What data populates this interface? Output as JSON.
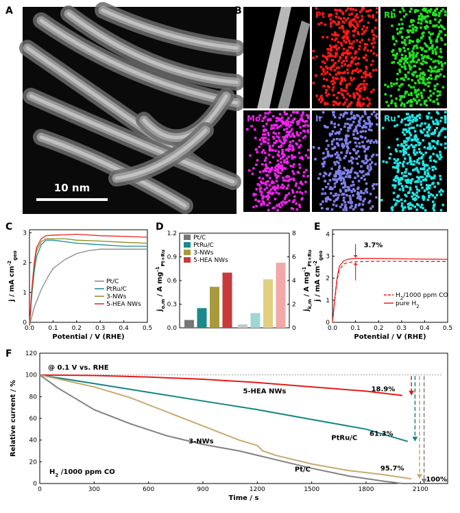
{
  "panel_labels": {
    "a": "A",
    "b": "B",
    "c": "C",
    "d": "D",
    "e": "E",
    "f": "F"
  },
  "micrograph": {
    "scale_bar_label": "10 nm"
  },
  "element_maps": [
    {
      "label": "",
      "color": "#dddddd"
    },
    {
      "label": "Pt",
      "color": "#ff1a1a"
    },
    {
      "label": "Rh",
      "color": "#22e022"
    },
    {
      "label": "Mo",
      "color": "#ee22ee"
    },
    {
      "label": "Ir",
      "color": "#8080ea"
    },
    {
      "label": "Ru",
      "color": "#20e6e6"
    }
  ],
  "chart_data": [
    {
      "id": "C",
      "type": "line",
      "ylabel_main": "j / mA cm",
      "ylabel_sup": "-2",
      "ylabel_sub": "geo",
      "xlabel": "Potential / V (RHE)",
      "xlim": [
        0,
        0.5
      ],
      "ylim": [
        0,
        3.1
      ],
      "xticks": [
        0.0,
        0.1,
        0.2,
        0.3,
        0.4,
        0.5
      ],
      "xtick_labels": [
        "0.0",
        "0.1",
        "0.2",
        "0.3",
        "0.4",
        "0.5"
      ],
      "yticks": [
        0,
        1,
        2,
        3
      ],
      "ytick_labels": [
        "0",
        "1",
        "2",
        "3"
      ],
      "legend_position": "bottom-right",
      "series": [
        {
          "name": "Pt/C",
          "color": "#888888",
          "x": [
            0,
            0.02,
            0.05,
            0.08,
            0.1,
            0.15,
            0.2,
            0.25,
            0.3,
            0.4,
            0.5
          ],
          "y": [
            -0.1,
            0.5,
            1.1,
            1.55,
            1.8,
            2.1,
            2.3,
            2.4,
            2.45,
            2.45,
            2.45
          ]
        },
        {
          "name": "PtRu/C",
          "color": "#138c8c",
          "x": [
            0,
            0.01,
            0.02,
            0.03,
            0.05,
            0.07,
            0.1,
            0.15,
            0.2,
            0.3,
            0.4,
            0.5
          ],
          "y": [
            -0.1,
            0.9,
            1.7,
            2.2,
            2.6,
            2.75,
            2.75,
            2.7,
            2.65,
            2.6,
            2.55,
            2.55
          ]
        },
        {
          "name": "3-NWs",
          "color": "#8a8a1a",
          "x": [
            0,
            0.01,
            0.02,
            0.03,
            0.05,
            0.07,
            0.1,
            0.15,
            0.2,
            0.3,
            0.4,
            0.5
          ],
          "y": [
            -0.1,
            1.0,
            1.9,
            2.4,
            2.7,
            2.8,
            2.8,
            2.8,
            2.75,
            2.72,
            2.68,
            2.65
          ]
        },
        {
          "name": "5-HEA NWs",
          "color": "#ee1c1c",
          "x": [
            0,
            0.01,
            0.02,
            0.03,
            0.05,
            0.07,
            0.1,
            0.15,
            0.2,
            0.3,
            0.4,
            0.5
          ],
          "y": [
            -0.1,
            1.1,
            2.0,
            2.5,
            2.8,
            2.9,
            2.92,
            2.93,
            2.95,
            2.9,
            2.88,
            2.85
          ]
        }
      ]
    },
    {
      "id": "D",
      "type": "bar",
      "ylabel_left_main": "j",
      "ylabel_left_sub": "o,m",
      "ylabel_left_rest": " / A mg",
      "ylabel_left_sup": "-1",
      "ylabel_left_sub2": "Pt+Ru",
      "ylabel_right_main": "j",
      "ylabel_right_sub": "k,m",
      "ylabel_right_rest": " / A mg",
      "ylabel_right_sup": "-1",
      "ylabel_right_sub2": "Pt+Ru",
      "ylim_left": [
        0,
        1.2
      ],
      "ylim_right": [
        0,
        8
      ],
      "yticks_left": [
        0,
        0.3,
        0.6,
        0.9,
        1.2
      ],
      "ytick_labels_left": [
        "0.0",
        "0.3",
        "0.6",
        "0.9",
        "1.2"
      ],
      "yticks_right": [
        0,
        2,
        4,
        6,
        8
      ],
      "ytick_labels_right": [
        "0",
        "2",
        "4",
        "6",
        "8"
      ],
      "legend_position": "top-left",
      "categories": [
        "Pt/C",
        "PtRu/C",
        "3-NWs",
        "5-HEA NWs"
      ],
      "colors": [
        "#777777",
        "#1a8a8a",
        "#a89a3a",
        "#c83a3a"
      ],
      "light_colors": [
        "#c8c8c8",
        "#9fd6d6",
        "#e0d080",
        "#f2a8a8"
      ],
      "series": [
        {
          "values": [
            0.1,
            0.25,
            0.52,
            0.7
          ]
        },
        {
          "values": [
            0.3,
            1.25,
            4.1,
            5.5
          ]
        }
      ]
    },
    {
      "id": "E",
      "type": "line",
      "ylabel_main": "j / mA cm",
      "ylabel_sup": "-2",
      "ylabel_sub": "geo",
      "xlabel": "Potential / V (RHE)",
      "xlim": [
        0,
        0.5
      ],
      "ylim": [
        0,
        4.2
      ],
      "xticks": [
        0.0,
        0.1,
        0.2,
        0.3,
        0.4,
        0.5
      ],
      "xtick_labels": [
        "0.0",
        "0.1",
        "0.2",
        "0.3",
        "0.4",
        "0.5"
      ],
      "yticks": [
        0,
        1,
        2,
        3,
        4
      ],
      "ytick_labels": [
        "0",
        "1",
        "2",
        "3",
        "4"
      ],
      "annotation": "3.7%",
      "annotation_x": 0.1,
      "legend_position": "bottom-right",
      "series": [
        {
          "name": "H",
          "name_sub": "2",
          "name_rest": "/1000 ppm CO",
          "color": "#ee1c1c",
          "dashed": true,
          "x": [
            0,
            0.01,
            0.02,
            0.03,
            0.05,
            0.07,
            0.1,
            0.15,
            0.2,
            0.3,
            0.4,
            0.5
          ],
          "y": [
            0,
            1.0,
            1.9,
            2.4,
            2.65,
            2.72,
            2.75,
            2.76,
            2.77,
            2.77,
            2.76,
            2.76
          ]
        },
        {
          "name": "pure H",
          "name_sub": "2",
          "name_rest": "",
          "color": "#ee1c1c",
          "dashed": false,
          "x": [
            0,
            0.01,
            0.02,
            0.03,
            0.05,
            0.07,
            0.1,
            0.15,
            0.2,
            0.3,
            0.4,
            0.5
          ],
          "y": [
            0,
            1.1,
            2.0,
            2.55,
            2.8,
            2.87,
            2.9,
            2.9,
            2.9,
            2.88,
            2.87,
            2.86
          ]
        }
      ]
    },
    {
      "id": "F",
      "type": "line",
      "ylabel": "Relative current / %",
      "xlabel": "Time / s",
      "xlim": [
        0,
        2250
      ],
      "ylim": [
        0,
        120
      ],
      "xticks": [
        0,
        300,
        600,
        900,
        1200,
        1500,
        1800,
        2100
      ],
      "xtick_labels": [
        "0",
        "300",
        "600",
        "900",
        "1200",
        "1500",
        "1800",
        "2100"
      ],
      "yticks": [
        0,
        20,
        40,
        60,
        80,
        100,
        120
      ],
      "ytick_labels": [
        "0",
        "20",
        "40",
        "60",
        "80",
        "100",
        "120"
      ],
      "reference_line": 100,
      "condition": "@ 0.1 V vs. RHE",
      "gas_label_main": "H",
      "gas_label_sub": "2",
      "gas_label_rest": " /1000 ppm CO",
      "series": [
        {
          "name": "5-HEA NWs",
          "color": "#e41a1a",
          "x": [
            0,
            300,
            600,
            900,
            1200,
            1500,
            1800,
            2000
          ],
          "y": [
            100,
            99.5,
            98,
            96,
            93,
            89,
            85,
            81.1
          ],
          "end_label": "18.9%",
          "end_x": 2050
        },
        {
          "name": "PtRu/C",
          "color": "#138484",
          "x": [
            0,
            300,
            600,
            900,
            1200,
            1500,
            1800,
            2030
          ],
          "y": [
            100,
            92,
            84,
            76,
            68,
            59,
            50,
            38.7
          ],
          "end_label": "61.3%",
          "end_x": 2070
        },
        {
          "name": "3-NWs",
          "color": "#c8a870",
          "x": [
            0,
            300,
            500,
            700,
            900,
            1100,
            1200,
            1230,
            1300,
            1500,
            1700,
            1900,
            2050
          ],
          "y": [
            100,
            89,
            79,
            66,
            53,
            40,
            35,
            30,
            26,
            18,
            12,
            8,
            4.3
          ],
          "end_label": "95.7%",
          "end_x": 2095
        },
        {
          "name": "Pt/C",
          "color": "#808080",
          "x": [
            0,
            100,
            300,
            500,
            700,
            900,
            1100,
            1300,
            1500,
            1700,
            1900,
            2000
          ],
          "y": [
            100,
            88,
            68,
            55,
            44,
            36,
            30,
            22,
            14,
            7,
            2,
            0
          ],
          "end_label": "100%",
          "end_x": 2120
        }
      ]
    }
  ]
}
